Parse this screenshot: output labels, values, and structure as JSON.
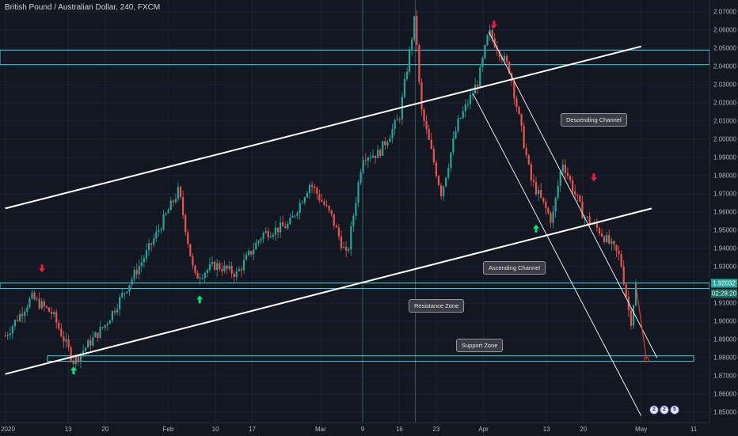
{
  "header": {
    "title": "British Pound / Australian Dollar, 240, FXCM"
  },
  "colors": {
    "bg": "#131722",
    "up": "#26a69a",
    "down": "#ef5350",
    "zone": "#4dd0e1",
    "channel": "#ffffff",
    "arrow_up": "#00e676",
    "arrow_down": "#ff1744"
  },
  "price_axis": {
    "ticks": [
      "2.07000",
      "2.06000",
      "2.05000",
      "2.04000",
      "2.03000",
      "2.02000",
      "2.01000",
      "2.00000",
      "1.99000",
      "1.98000",
      "1.97000",
      "1.96000",
      "1.95000",
      "1.94000",
      "1.93000",
      "1.91000",
      "1.90000",
      "1.89000",
      "1.88000",
      "1.87000",
      "1.86000",
      "1.85000"
    ],
    "last_price": "1.92032",
    "countdown": "02:28:20"
  },
  "time_axis": {
    "ticks": [
      "2020",
      "13",
      "20",
      "Feb",
      "10",
      "17",
      "Mar",
      "9",
      "16",
      "23",
      "Apr",
      "13",
      "20",
      "May",
      "11"
    ]
  },
  "annotations": {
    "descending_channel": "Descending Channel",
    "ascending_channel": "Ascending Channel",
    "resistance_zone": "Resistance Zone",
    "support_zone": "Support Zone"
  },
  "logo": [
    "2",
    "2",
    "5"
  ],
  "chart_data": {
    "type": "line",
    "title": "British Pound / Australian Dollar, 240, FXCM",
    "ylim": [
      1.845,
      2.076
    ],
    "x": [
      "2020-01-01",
      "2020-01-06",
      "2020-01-10",
      "2020-01-14",
      "2020-01-20",
      "2020-01-24",
      "2020-01-28",
      "2020-02-03",
      "2020-02-06",
      "2020-02-10",
      "2020-02-14",
      "2020-02-19",
      "2020-02-24",
      "2020-02-28",
      "2020-03-03",
      "2020-03-06",
      "2020-03-09",
      "2020-03-12",
      "2020-03-16",
      "2020-03-19",
      "2020-03-20",
      "2020-03-24",
      "2020-03-27",
      "2020-03-31",
      "2020-04-02",
      "2020-04-06",
      "2020-04-10",
      "2020-04-14",
      "2020-04-16",
      "2020-04-20",
      "2020-04-23",
      "2020-04-27",
      "2020-04-29",
      "2020-04-30"
    ],
    "series": [
      {
        "values": [
          1.892,
          1.913,
          1.904,
          1.878,
          1.898,
          1.918,
          1.938,
          1.972,
          1.924,
          1.931,
          1.926,
          1.948,
          1.953,
          1.976,
          1.958,
          1.935,
          1.991,
          1.992,
          2.012,
          2.068,
          2.018,
          1.97,
          2.008,
          2.032,
          2.059,
          2.038,
          1.978,
          1.955,
          1.988,
          1.958,
          1.95,
          1.935,
          1.899,
          1.92
        ]
      }
    ],
    "levels": {
      "resistance_zone": [
        2.041,
        2.049
      ],
      "resistance_zone_2": [
        1.918,
        1.921
      ],
      "support_zone": [
        1.878,
        1.881
      ]
    },
    "channels": {
      "ascending_upper": [
        [
          "2020-01-01",
          1.962
        ],
        [
          "2020-05-01",
          2.051
        ]
      ],
      "ascending_lower": [
        [
          "2020-01-01",
          1.871
        ],
        [
          "2020-05-03",
          1.962
        ]
      ],
      "descending_upper": [
        [
          "2020-04-02",
          2.059
        ],
        [
          "2020-05-04",
          1.88
        ]
      ],
      "descending_lower": [
        [
          "2020-03-30",
          2.025
        ],
        [
          "2020-05-01",
          1.848
        ]
      ]
    },
    "projection": [
      [
        "2020-04-30",
        1.92
      ],
      [
        "2020-05-02",
        1.879
      ]
    ],
    "markers": {
      "up": [
        [
          "2020-01-14",
          1.873
        ],
        [
          "2020-02-07",
          1.912
        ],
        [
          "2020-04-11",
          1.951
        ]
      ],
      "down": [
        [
          "2020-01-08",
          1.929
        ],
        [
          "2020-04-03",
          2.063
        ],
        [
          "2020-04-22",
          1.979
        ]
      ]
    }
  }
}
